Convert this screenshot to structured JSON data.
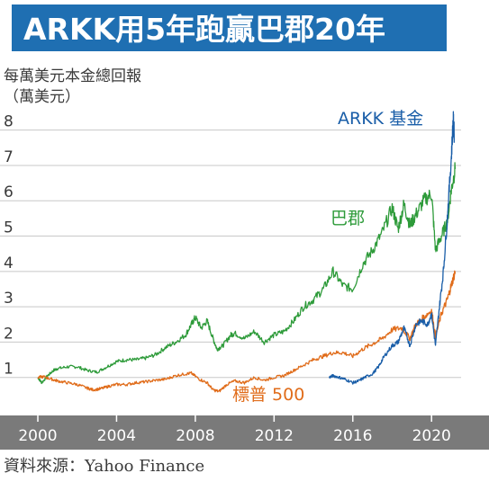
{
  "title": "ARKK用5年跑贏巴郡20年",
  "unit_label_line1": "每萬美元本金總回報",
  "unit_label_line2": "（萬美元）",
  "source": "資料來源：Yahoo Finance",
  "colors": {
    "title_bg": "#1f6fb2",
    "arkk": "#1a5ea8",
    "berkshire": "#2e9b3a",
    "sp500": "#e06c1a",
    "axis_bar": "#7a7a7a"
  },
  "chart_data": {
    "type": "line",
    "xlim": [
      2000,
      2021.5
    ],
    "ylim": [
      0,
      8.5
    ],
    "y_ticks": [
      1,
      2,
      3,
      4,
      5,
      6,
      7,
      8
    ],
    "x_ticks": [
      2000,
      2004,
      2008,
      2012,
      2016,
      2020
    ],
    "grid": true,
    "series": [
      {
        "name": "巴郡",
        "color": "#2e9b3a",
        "points": [
          [
            2000.0,
            1.0
          ],
          [
            2000.2,
            0.85
          ],
          [
            2000.5,
            1.05
          ],
          [
            2000.8,
            1.2
          ],
          [
            2001.0,
            1.25
          ],
          [
            2001.5,
            1.3
          ],
          [
            2002.0,
            1.3
          ],
          [
            2002.5,
            1.2
          ],
          [
            2003.0,
            1.15
          ],
          [
            2003.5,
            1.3
          ],
          [
            2004.0,
            1.45
          ],
          [
            2004.5,
            1.5
          ],
          [
            2005.0,
            1.5
          ],
          [
            2005.5,
            1.55
          ],
          [
            2006.0,
            1.65
          ],
          [
            2006.5,
            1.85
          ],
          [
            2007.0,
            2.0
          ],
          [
            2007.5,
            2.2
          ],
          [
            2007.8,
            2.5
          ],
          [
            2008.0,
            2.7
          ],
          [
            2008.3,
            2.4
          ],
          [
            2008.6,
            2.6
          ],
          [
            2008.9,
            2.1
          ],
          [
            2009.1,
            1.8
          ],
          [
            2009.4,
            1.9
          ],
          [
            2009.8,
            2.2
          ],
          [
            2010.0,
            2.25
          ],
          [
            2010.5,
            2.1
          ],
          [
            2011.0,
            2.3
          ],
          [
            2011.5,
            2.0
          ],
          [
            2012.0,
            2.2
          ],
          [
            2012.5,
            2.3
          ],
          [
            2013.0,
            2.6
          ],
          [
            2013.5,
            3.0
          ],
          [
            2014.0,
            3.2
          ],
          [
            2014.5,
            3.5
          ],
          [
            2015.0,
            4.0
          ],
          [
            2015.5,
            3.6
          ],
          [
            2016.0,
            3.5
          ],
          [
            2016.5,
            4.2
          ],
          [
            2017.0,
            4.6
          ],
          [
            2017.5,
            5.1
          ],
          [
            2018.0,
            5.8
          ],
          [
            2018.3,
            5.2
          ],
          [
            2018.6,
            5.9
          ],
          [
            2018.9,
            5.3
          ],
          [
            2019.2,
            5.6
          ],
          [
            2019.6,
            6.0
          ],
          [
            2020.0,
            6.2
          ],
          [
            2020.2,
            4.6
          ],
          [
            2020.5,
            5.0
          ],
          [
            2020.8,
            5.4
          ],
          [
            2021.0,
            6.3
          ],
          [
            2021.2,
            6.9
          ]
        ]
      },
      {
        "name": "標普 500",
        "color": "#e06c1a",
        "points": [
          [
            2000.0,
            1.0
          ],
          [
            2000.3,
            1.02
          ],
          [
            2000.7,
            0.95
          ],
          [
            2001.0,
            0.9
          ],
          [
            2001.5,
            0.85
          ],
          [
            2002.0,
            0.8
          ],
          [
            2002.5,
            0.7
          ],
          [
            2002.8,
            0.65
          ],
          [
            2003.2,
            0.68
          ],
          [
            2003.6,
            0.75
          ],
          [
            2004.0,
            0.8
          ],
          [
            2004.5,
            0.8
          ],
          [
            2005.0,
            0.85
          ],
          [
            2005.5,
            0.88
          ],
          [
            2006.0,
            0.92
          ],
          [
            2006.5,
            0.95
          ],
          [
            2007.0,
            1.05
          ],
          [
            2007.5,
            1.1
          ],
          [
            2007.8,
            1.12
          ],
          [
            2008.2,
            0.95
          ],
          [
            2008.6,
            0.85
          ],
          [
            2008.9,
            0.65
          ],
          [
            2009.2,
            0.6
          ],
          [
            2009.6,
            0.8
          ],
          [
            2010.0,
            0.9
          ],
          [
            2010.5,
            0.85
          ],
          [
            2011.0,
            1.0
          ],
          [
            2011.5,
            0.92
          ],
          [
            2012.0,
            1.0
          ],
          [
            2012.5,
            1.05
          ],
          [
            2013.0,
            1.2
          ],
          [
            2013.5,
            1.35
          ],
          [
            2014.0,
            1.5
          ],
          [
            2014.5,
            1.6
          ],
          [
            2015.0,
            1.7
          ],
          [
            2015.5,
            1.7
          ],
          [
            2016.0,
            1.6
          ],
          [
            2016.5,
            1.8
          ],
          [
            2017.0,
            1.95
          ],
          [
            2017.5,
            2.1
          ],
          [
            2018.0,
            2.35
          ],
          [
            2018.5,
            2.4
          ],
          [
            2018.9,
            2.1
          ],
          [
            2019.2,
            2.5
          ],
          [
            2019.6,
            2.7
          ],
          [
            2020.0,
            2.9
          ],
          [
            2020.2,
            2.15
          ],
          [
            2020.5,
            2.8
          ],
          [
            2020.8,
            3.2
          ],
          [
            2021.0,
            3.6
          ],
          [
            2021.2,
            4.0
          ]
        ]
      },
      {
        "name": "ARKK 基金",
        "color": "#1a5ea8",
        "points": [
          [
            2014.8,
            1.0
          ],
          [
            2015.0,
            1.05
          ],
          [
            2015.3,
            1.0
          ],
          [
            2015.6,
            0.95
          ],
          [
            2016.0,
            0.85
          ],
          [
            2016.3,
            0.9
          ],
          [
            2016.6,
            1.0
          ],
          [
            2017.0,
            1.1
          ],
          [
            2017.3,
            1.3
          ],
          [
            2017.6,
            1.6
          ],
          [
            2018.0,
            1.9
          ],
          [
            2018.3,
            2.0
          ],
          [
            2018.6,
            2.4
          ],
          [
            2018.9,
            1.9
          ],
          [
            2019.2,
            2.5
          ],
          [
            2019.5,
            2.6
          ],
          [
            2019.8,
            2.5
          ],
          [
            2020.0,
            2.8
          ],
          [
            2020.2,
            1.9
          ],
          [
            2020.4,
            3.0
          ],
          [
            2020.6,
            4.0
          ],
          [
            2020.8,
            5.5
          ],
          [
            2021.0,
            7.2
          ],
          [
            2021.1,
            8.3
          ],
          [
            2021.15,
            7.9
          ]
        ]
      }
    ],
    "annotations": [
      {
        "text": "ARKK 基金",
        "color": "#1a5ea8"
      },
      {
        "text": "巴郡",
        "color": "#2e9b3a"
      },
      {
        "text": "標普 500",
        "color": "#e06c1a"
      }
    ]
  }
}
